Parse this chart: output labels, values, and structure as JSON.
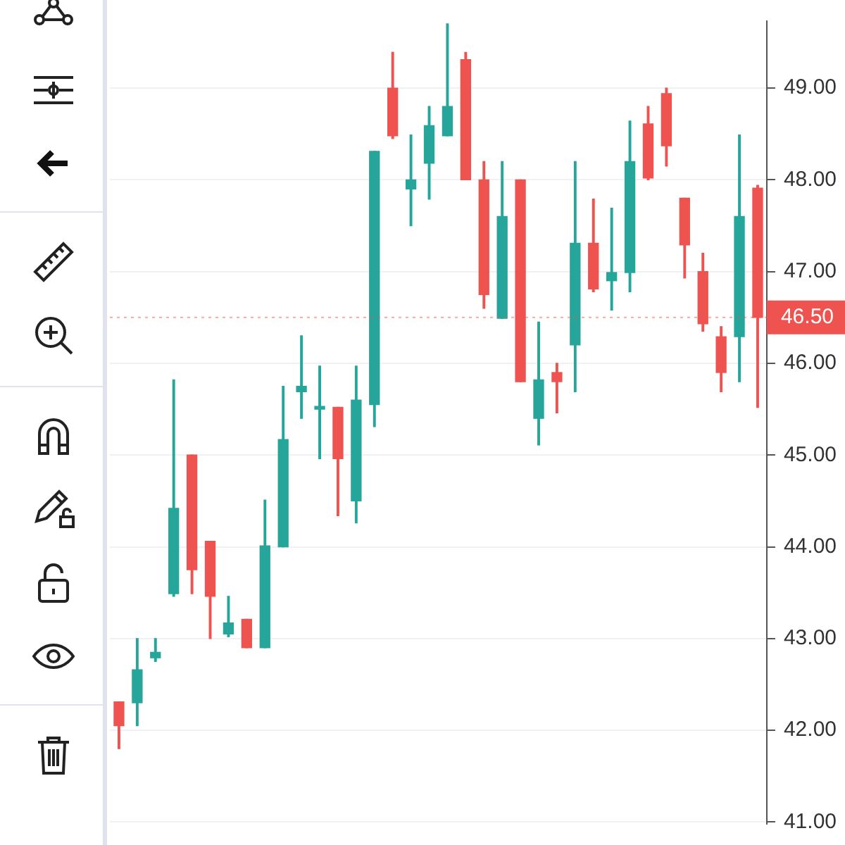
{
  "chart_data": {
    "type": "candlestick",
    "categories": [
      null,
      null,
      null,
      null,
      null,
      null,
      null,
      null,
      null,
      null,
      null,
      null,
      null,
      null,
      null,
      null,
      null,
      null,
      null,
      null,
      null,
      null,
      null,
      null,
      null,
      null,
      null,
      null,
      null,
      null,
      null,
      null,
      null,
      null,
      null,
      null
    ],
    "ohlc": [
      [
        42.31,
        42.31,
        41.8,
        42.05
      ],
      [
        42.3,
        43.0,
        42.05,
        42.66
      ],
      [
        42.79,
        43.0,
        42.75,
        42.85
      ],
      [
        43.49,
        45.82,
        43.46,
        44.42
      ],
      [
        45.0,
        45.0,
        43.49,
        43.75
      ],
      [
        44.06,
        44.06,
        43.0,
        43.46
      ],
      [
        43.05,
        43.46,
        43.02,
        43.17
      ],
      [
        43.21,
        43.21,
        42.9,
        42.9
      ],
      [
        42.9,
        44.51,
        42.9,
        44.01
      ],
      [
        44.0,
        45.75,
        44.0,
        45.17
      ],
      [
        45.69,
        46.3,
        45.4,
        45.75
      ],
      [
        45.5,
        45.97,
        44.96,
        45.52
      ],
      [
        45.52,
        45.52,
        44.34,
        44.96
      ],
      [
        44.5,
        45.97,
        44.26,
        45.6
      ],
      [
        45.55,
        48.31,
        45.31,
        48.31
      ],
      [
        49.0,
        49.39,
        48.45,
        48.48
      ],
      [
        47.9,
        48.49,
        47.5,
        48.0
      ],
      [
        48.18,
        48.8,
        47.79,
        48.59
      ],
      [
        48.48,
        49.7,
        48.48,
        48.8
      ],
      [
        49.31,
        49.39,
        48.0,
        48.0
      ],
      [
        48.0,
        48.2,
        46.6,
        46.75
      ],
      [
        46.49,
        48.2,
        46.49,
        47.6
      ],
      [
        48.0,
        48.0,
        45.8,
        45.8
      ],
      [
        45.4,
        46.45,
        45.11,
        45.82
      ],
      [
        45.9,
        46.0,
        45.46,
        45.8
      ],
      [
        46.2,
        48.2,
        45.69,
        47.31
      ],
      [
        47.31,
        47.79,
        46.78,
        46.81
      ],
      [
        46.9,
        47.69,
        46.58,
        46.99
      ],
      [
        46.99,
        48.64,
        46.78,
        48.2
      ],
      [
        48.61,
        48.8,
        48.0,
        48.02
      ],
      [
        48.94,
        49.0,
        48.15,
        48.37
      ],
      [
        47.8,
        47.8,
        46.93,
        47.29
      ],
      [
        47.0,
        47.2,
        46.35,
        46.43
      ],
      [
        46.29,
        46.4,
        45.69,
        45.9
      ],
      [
        46.29,
        48.49,
        45.8,
        47.6
      ],
      [
        47.91,
        47.94,
        45.52,
        46.5
      ]
    ],
    "colors": [
      "#ef5350",
      "#26a69a",
      "#26a69a",
      "#26a69a",
      "#ef5350",
      "#ef5350",
      "#26a69a",
      "#ef5350",
      "#26a69a",
      "#26a69a",
      "#26a69a",
      "#26a69a",
      "#ef5350",
      "#26a69a",
      "#26a69a",
      "#ef5350",
      "#26a69a",
      "#26a69a",
      "#26a69a",
      "#ef5350",
      "#ef5350",
      "#26a69a",
      "#ef5350",
      "#26a69a",
      "#ef5350",
      "#26a69a",
      "#ef5350",
      "#26a69a",
      "#26a69a",
      "#ef5350",
      "#ef5350",
      "#ef5350",
      "#ef5350",
      "#ef5350",
      "#26a69a",
      "#ef5350"
    ],
    "ylim": [
      40.98,
      49.73
    ],
    "yticks": [
      {
        "value": 41,
        "label": "41.00"
      },
      {
        "value": 42,
        "label": "42.00"
      },
      {
        "value": 43,
        "label": "43.00"
      },
      {
        "value": 44,
        "label": "44.00"
      },
      {
        "value": 45,
        "label": "45.00"
      },
      {
        "value": 46,
        "label": "46.00"
      },
      {
        "value": 47,
        "label": "47.00"
      },
      {
        "value": 48,
        "label": "48.00"
      },
      {
        "value": 49,
        "label": "49.00"
      }
    ],
    "grid": "y",
    "legend": false,
    "ref_lines": [
      {
        "axis": "y",
        "value": 46.5,
        "label": "46.50",
        "color": "#ef5350",
        "line_style": "dotted"
      }
    ]
  }
}
